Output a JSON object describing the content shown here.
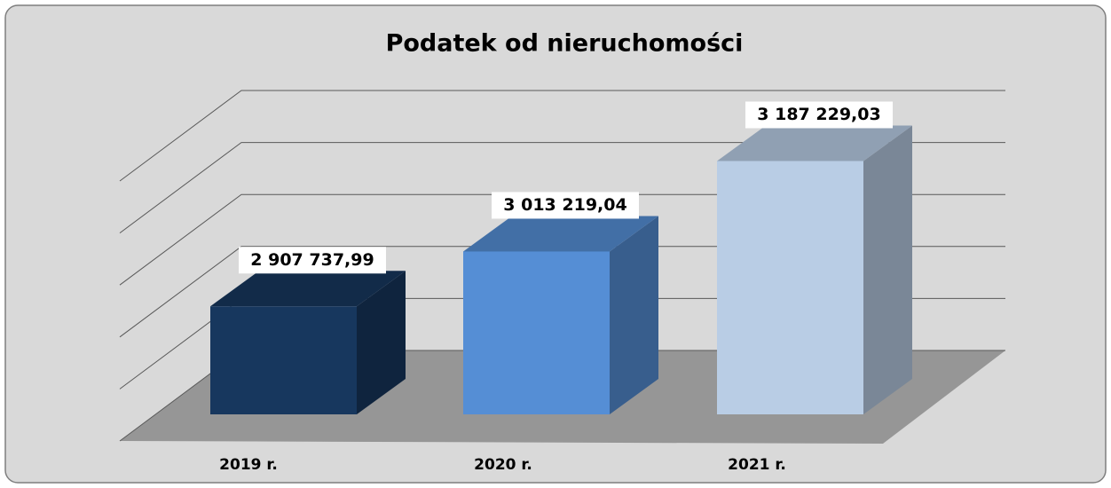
{
  "chart_data": {
    "type": "bar3d",
    "title": "Podatek od nieruchomości",
    "categories": [
      "2019 r.",
      "2020 r.",
      "2021 r."
    ],
    "values": [
      2907737.99,
      3013219.04,
      3187229.03
    ],
    "value_labels": [
      "2 907 737,99",
      "3 013 219,04",
      "3 187 229,03"
    ],
    "colors": [
      "#17375e",
      "#558ed5",
      "#b9cde5"
    ],
    "ylim": [
      2700000,
      3200000
    ],
    "yticks": [
      2700000,
      2800000,
      2900000,
      3000000,
      3100000,
      3200000
    ],
    "grid": true
  }
}
